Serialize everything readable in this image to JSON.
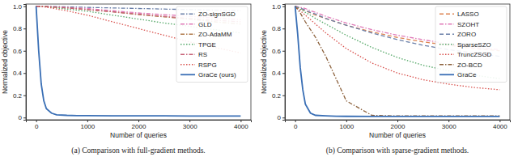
{
  "chart_data": [
    {
      "type": "line",
      "caption": "(a) Comparison with full-gradient methods.",
      "x_label": "Number of queries",
      "y_label": "Normalized objective",
      "x": [
        0,
        50,
        100,
        150,
        200,
        300,
        400,
        600,
        800,
        1000,
        1500,
        2000,
        2500,
        3000,
        3500,
        4000
      ],
      "xlim": [
        -200,
        4200
      ],
      "ylim": [
        -0.02,
        1.02
      ],
      "xticks": [
        0,
        1000,
        2000,
        3000,
        4000
      ],
      "yticks": [
        0,
        0.2,
        0.4,
        0.6,
        0.8,
        {
          "value": 1,
          "label": "1.0"
        }
      ],
      "grid": false,
      "legend": "upper right",
      "series": [
        {
          "name": "ZO-signSGD",
          "color": "#6a7fa8",
          "line_style": "dashdot",
          "values": [
            1,
            1,
            1,
            1,
            0.999,
            0.998,
            0.997,
            0.995,
            0.993,
            0.99,
            0.985,
            0.98,
            0.975,
            0.97,
            0.965,
            0.96
          ]
        },
        {
          "name": "GLD",
          "color": "#e07ab8",
          "line_style": "dashdot",
          "values": [
            1,
            1,
            1,
            0.999,
            0.998,
            0.996,
            0.994,
            0.99,
            0.985,
            0.98,
            0.96,
            0.94,
            0.925,
            0.91,
            0.895,
            0.88
          ]
        },
        {
          "name": "ZO-AdaMM",
          "color": "#b07a4a",
          "line_style": "dashdot",
          "values": [
            1,
            1,
            0.999,
            0.998,
            0.997,
            0.994,
            0.99,
            0.985,
            0.978,
            0.97,
            0.95,
            0.925,
            0.905,
            0.885,
            0.86,
            0.84
          ]
        },
        {
          "name": "TPGE",
          "color": "#55a868",
          "line_style": "dotted",
          "values": [
            1,
            1,
            0.999,
            0.998,
            0.996,
            0.99,
            0.985,
            0.975,
            0.965,
            0.955,
            0.92,
            0.885,
            0.85,
            0.82,
            0.79,
            0.76
          ]
        },
        {
          "name": "RS",
          "color": "#c8647a",
          "line_style": "dashdot",
          "values": [
            1,
            1,
            0.999,
            0.998,
            0.997,
            0.995,
            0.992,
            0.985,
            0.978,
            0.97,
            0.95,
            0.93,
            0.91,
            0.89,
            0.875,
            0.86
          ]
        },
        {
          "name": "RSPG",
          "color": "#d9534f",
          "line_style": "dotted",
          "values": [
            1,
            0.999,
            0.997,
            0.995,
            0.99,
            0.985,
            0.975,
            0.96,
            0.94,
            0.92,
            0.86,
            0.8,
            0.74,
            0.68,
            0.63,
            0.58
          ]
        },
        {
          "name": "GraCe (ours)",
          "color": "#3a6fb5",
          "line_style": "solid",
          "values": [
            1,
            0.6,
            0.3,
            0.15,
            0.08,
            0.04,
            0.025,
            0.02,
            0.018,
            0.017,
            0.016,
            0.015,
            0.015,
            0.014,
            0.014,
            0.014
          ]
        }
      ]
    },
    {
      "type": "line",
      "caption": "(b) Comparison with sparse-gradient methods.",
      "x_label": "Number of queries",
      "y_label": "Normalized objective",
      "x": [
        0,
        50,
        100,
        150,
        200,
        300,
        400,
        600,
        800,
        1000,
        1500,
        2000,
        2500,
        3000,
        3500,
        4000
      ],
      "xlim": [
        -200,
        4200
      ],
      "ylim": [
        -0.02,
        1.02
      ],
      "xticks": [
        0,
        1000,
        2000,
        3000,
        4000
      ],
      "yticks": [
        0,
        0.2,
        0.4,
        0.6,
        0.8,
        {
          "value": 1,
          "label": "1.0"
        }
      ],
      "grid": false,
      "legend": "upper right",
      "series": [
        {
          "name": "LASSO",
          "color": "#dd8452",
          "line_style": "dashed",
          "values": [
            1,
            0.99,
            0.98,
            0.97,
            0.96,
            0.94,
            0.92,
            0.89,
            0.86,
            0.83,
            0.77,
            0.72,
            0.68,
            0.65,
            0.62,
            0.6
          ]
        },
        {
          "name": "SZOHT",
          "color": "#e07ab8",
          "line_style": "dashdot",
          "values": [
            1,
            0.995,
            0.99,
            0.985,
            0.98,
            0.96,
            0.945,
            0.91,
            0.88,
            0.85,
            0.79,
            0.74,
            0.7,
            0.66,
            0.63,
            0.61
          ]
        },
        {
          "name": "ZORO",
          "color": "#6a7fa8",
          "line_style": "dashed",
          "values": [
            1,
            0.99,
            0.98,
            0.975,
            0.965,
            0.945,
            0.93,
            0.89,
            0.86,
            0.83,
            0.76,
            0.7,
            0.65,
            0.61,
            0.58,
            0.55
          ]
        },
        {
          "name": "SparseSZO",
          "color": "#55a868",
          "line_style": "dotted",
          "values": [
            1,
            0.99,
            0.975,
            0.96,
            0.945,
            0.92,
            0.89,
            0.84,
            0.79,
            0.74,
            0.63,
            0.54,
            0.47,
            0.42,
            0.38,
            0.35
          ]
        },
        {
          "name": "TruncZSGD",
          "color": "#d9534f",
          "line_style": "dotted",
          "values": [
            1,
            0.98,
            0.96,
            0.94,
            0.92,
            0.88,
            0.84,
            0.76,
            0.69,
            0.62,
            0.49,
            0.4,
            0.34,
            0.3,
            0.27,
            0.25
          ]
        },
        {
          "name": "ZO-BCD",
          "color": "#8c613c",
          "line_style": "dashdot",
          "values": [
            1,
            0.97,
            0.94,
            0.9,
            0.86,
            0.79,
            0.72,
            0.55,
            0.35,
            0.15,
            0.02,
            0.015,
            0.015,
            0.015,
            0.015,
            0.015
          ]
        },
        {
          "name": "GraCe",
          "color": "#3a6fb5",
          "line_style": "solid",
          "values": [
            1,
            0.75,
            0.45,
            0.25,
            0.12,
            0.04,
            0.02,
            0.015,
            0.012,
            0.011,
            0.01,
            0.01,
            0.01,
            0.01,
            0.01,
            0.01
          ]
        }
      ]
    }
  ]
}
